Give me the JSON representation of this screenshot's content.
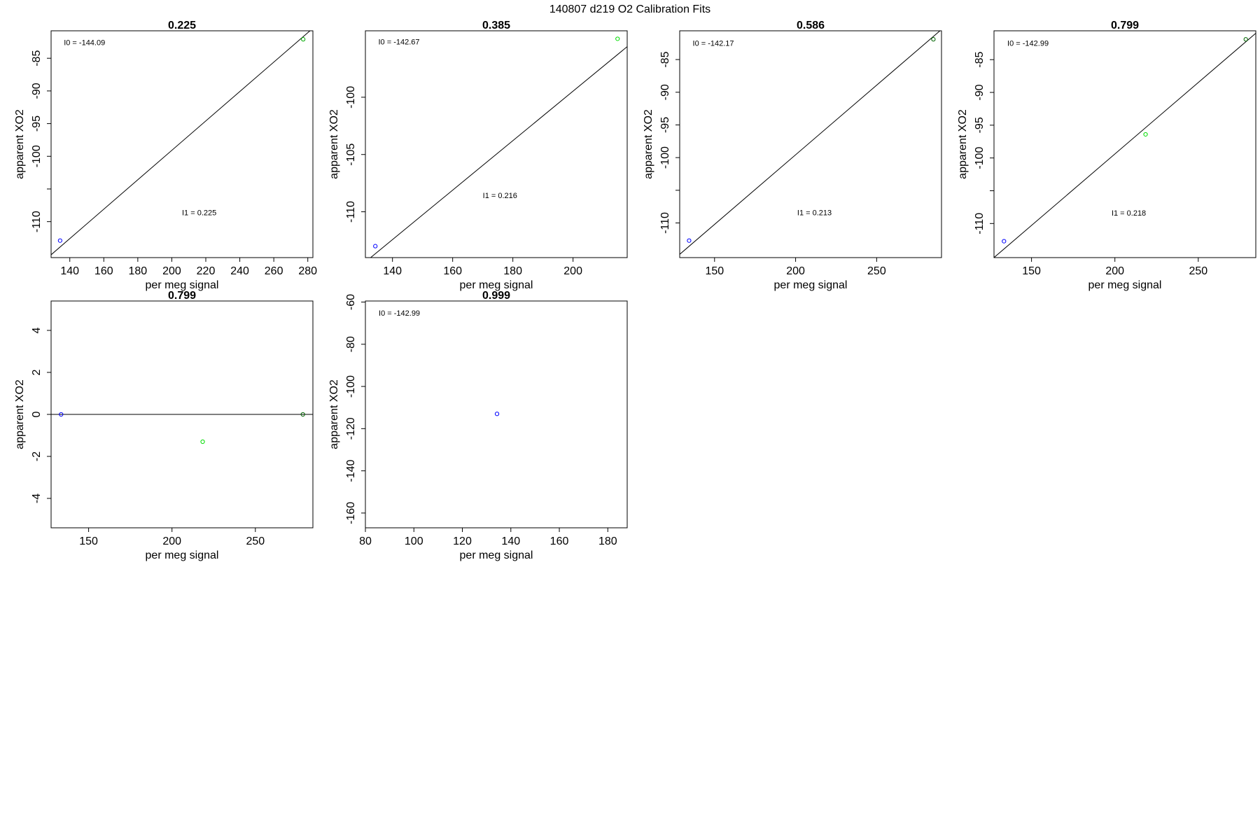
{
  "figure": {
    "title": "140807   d219   O2 Calibration Fits"
  },
  "chart_data": [
    {
      "type": "scatter",
      "title": "0.225",
      "xlabel": "per meg signal",
      "ylabel": "apparent XO2",
      "xlim": [
        129,
        283
      ],
      "ylim": [
        -115.5,
        -80.8
      ],
      "xticks": [
        140,
        160,
        180,
        200,
        220,
        240,
        260,
        280
      ],
      "yticks": [
        -110,
        -105,
        -100,
        -95,
        -90,
        -85
      ],
      "ytick_labels": [
        "-110",
        "",
        "-100",
        "-95",
        "-90",
        "-85"
      ],
      "points": [
        {
          "x": 134.3,
          "y": -112.9,
          "color": "#0000ff"
        },
        {
          "x": 277.3,
          "y": -82.1,
          "color": "#00aa00"
        }
      ],
      "fit_line": {
        "intercept": -144.09,
        "slope": 0.225
      },
      "annotations": [
        {
          "text": "I0 =  -144.09",
          "x": 136.5,
          "y": -83.0
        },
        {
          "text": "I1 =  0.225",
          "x": 206,
          "y": -109.0
        }
      ]
    },
    {
      "type": "scatter",
      "title": "0.385",
      "xlabel": "per meg signal",
      "ylabel": "apparent XO2",
      "xlim": [
        131,
        218
      ],
      "ylim": [
        -114,
        -94.2
      ],
      "xticks": [
        140,
        160,
        180,
        200
      ],
      "yticks": [
        -110,
        -105,
        -100
      ],
      "ytick_labels": [
        "-110",
        "-105",
        "-100"
      ],
      "points": [
        {
          "x": 134.3,
          "y": -113.0,
          "color": "#0000ff"
        },
        {
          "x": 214.8,
          "y": -94.9,
          "color": "#00dd00"
        }
      ],
      "fit_line": {
        "intercept": -142.67,
        "slope": 0.216
      },
      "annotations": [
        {
          "text": "I0 =  -142.67",
          "x": 135.3,
          "y": -95.4
        },
        {
          "text": "I1 =  0.216",
          "x": 170,
          "y": -108.8
        }
      ]
    },
    {
      "type": "scatter",
      "title": "0.586",
      "xlabel": "per meg signal",
      "ylabel": "apparent XO2",
      "xlim": [
        128.5,
        290
      ],
      "ylim": [
        -115.3,
        -80.6
      ],
      "xticks": [
        150,
        200,
        250
      ],
      "yticks": [
        -110,
        -105,
        -100,
        -95,
        -90,
        -85
      ],
      "ytick_labels": [
        "-110",
        "",
        "-100",
        "-95",
        "-90",
        "-85"
      ],
      "points": [
        {
          "x": 134.3,
          "y": -112.7,
          "color": "#0000ff"
        },
        {
          "x": 285.0,
          "y": -81.9,
          "color": "#006400"
        }
      ],
      "fit_line": {
        "intercept": -142.17,
        "slope": 0.213
      },
      "annotations": [
        {
          "text": "I0 =  -142.17",
          "x": 136.5,
          "y": -82.9
        },
        {
          "text": "I1 =  0.213",
          "x": 201,
          "y": -108.8
        }
      ]
    },
    {
      "type": "scatter",
      "title": "0.799",
      "xlabel": "per meg signal",
      "ylabel": "apparent XO2",
      "xlim": [
        127.5,
        284.5
      ],
      "ylim": [
        -115.2,
        -80.6
      ],
      "xticks": [
        150,
        200,
        250
      ],
      "yticks": [
        -110,
        -105,
        -100,
        -95,
        -90,
        -85
      ],
      "ytick_labels": [
        "-110",
        "",
        "-100",
        "-95",
        "-90",
        "-85"
      ],
      "points": [
        {
          "x": 133.5,
          "y": -112.7,
          "color": "#0000ff"
        },
        {
          "x": 218.4,
          "y": -96.4,
          "color": "#00dd00"
        },
        {
          "x": 278.5,
          "y": -81.9,
          "color": "#006400"
        }
      ],
      "fit_line": {
        "intercept": -142.99,
        "slope": 0.218
      },
      "annotations": [
        {
          "text": "I0 =  -142.99",
          "x": 135.5,
          "y": -82.9
        },
        {
          "text": "I1 =  0.218",
          "x": 198,
          "y": -108.8
        }
      ]
    },
    {
      "type": "scatter",
      "title": "0.799",
      "xlabel": "per meg signal",
      "ylabel": "apparent XO2",
      "xlim": [
        127.5,
        284.5
      ],
      "ylim": [
        -5.4,
        5.4
      ],
      "xticks": [
        150,
        200,
        250
      ],
      "yticks": [
        -4,
        -2,
        0,
        2,
        4
      ],
      "ytick_labels": [
        "-4",
        "-2",
        "0",
        "2",
        "4"
      ],
      "points": [
        {
          "x": 133.5,
          "y": 0.0,
          "color": "#0000ff"
        },
        {
          "x": 218.4,
          "y": -1.3,
          "color": "#00dd00"
        },
        {
          "x": 278.5,
          "y": 0.0,
          "color": "#006400"
        }
      ],
      "hline": 0,
      "annotations": []
    },
    {
      "type": "scatter",
      "title": "0.999",
      "xlabel": "per meg signal",
      "ylabel": "apparent XO2",
      "xlim": [
        80,
        188
      ],
      "ylim": [
        -167,
        -59.5
      ],
      "xticks": [
        80,
        100,
        120,
        140,
        160,
        180
      ],
      "yticks": [
        -160,
        -140,
        -120,
        -100,
        -80,
        -60
      ],
      "ytick_labels": [
        "-160",
        "-140",
        "-120",
        "-100",
        "-80",
        "-60"
      ],
      "points": [
        {
          "x": 134.3,
          "y": -113.0,
          "color": "#0000ff"
        }
      ],
      "annotations": [
        {
          "text": "I0 =  -142.99",
          "x": 85.5,
          "y": -66.5
        }
      ]
    }
  ]
}
